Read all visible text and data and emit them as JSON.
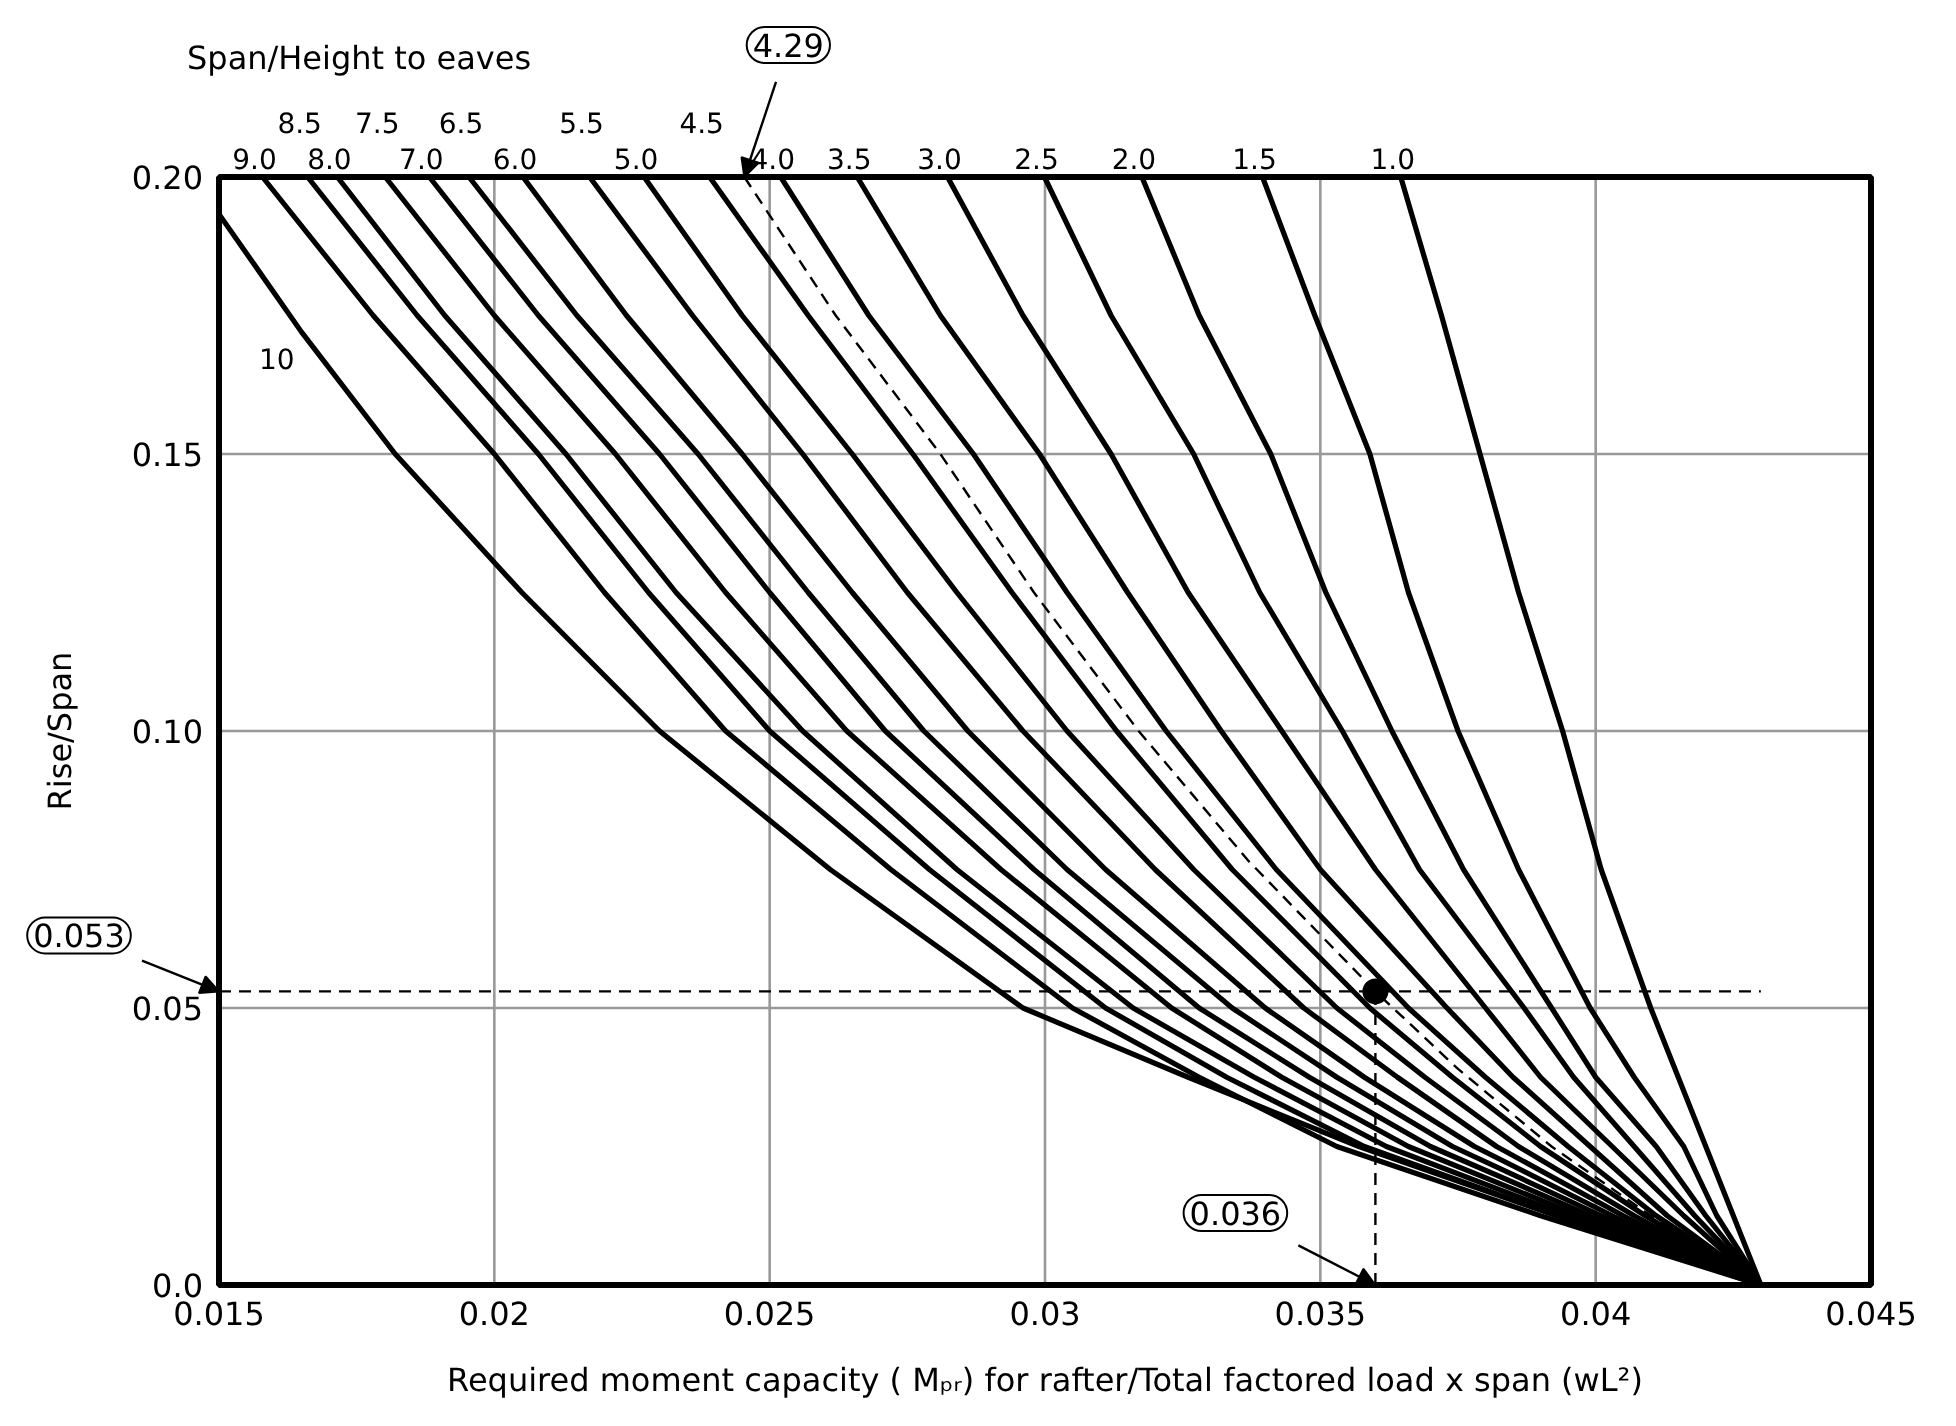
{
  "chart_data": {
    "type": "line",
    "xlabel": "Required moment capacity ( Mₚᵣ) for rafter/Total factored load x span (wL²)",
    "ylabel": "Rise/Span",
    "legend_title": "Span/Height to eaves",
    "xlim": [
      0.015,
      0.045
    ],
    "ylim": [
      0,
      0.2
    ],
    "xticks": [
      0.015,
      0.02,
      0.025,
      0.03,
      0.035,
      0.04,
      0.045
    ],
    "yticks": [
      {
        "value": 0,
        "label": "0.0"
      },
      0.05,
      {
        "value": 0.1,
        "label": "0.10"
      },
      0.15,
      {
        "value": 0.2,
        "label": "0.20"
      }
    ],
    "grid": true,
    "marker": "none",
    "line_style": "solid",
    "series": [
      {
        "name": "10",
        "color": "#000000",
        "x": [
          0.015,
          0.0165,
          0.0182,
          0.0205,
          0.023,
          0.0261,
          0.0296,
          0.0326,
          0.0357,
          0.0393,
          0.043
        ],
        "values": [
          0.1933,
          0.172,
          0.15,
          0.125,
          0.1,
          0.075,
          0.05,
          0.0375,
          0.025,
          0.0125,
          0
        ]
      },
      {
        "name": "9.0",
        "color": "#000000",
        "x": [
          0.01579,
          0.0178,
          0.02,
          0.022,
          0.0242,
          0.0272,
          0.0305,
          0.0328,
          0.0353,
          0.039,
          0.043
        ],
        "values": [
          0.2,
          0.175,
          0.15,
          0.125,
          0.1,
          0.075,
          0.05,
          0.0375,
          0.025,
          0.0125,
          0
        ]
      },
      {
        "name": "8.5",
        "color": "#000000",
        "x": [
          0.01661,
          0.0186,
          0.0208,
          0.0228,
          0.025,
          0.0279,
          0.0311,
          0.0333,
          0.0358,
          0.0393,
          0.043
        ],
        "values": [
          0.2,
          0.175,
          0.15,
          0.125,
          0.1,
          0.075,
          0.05,
          0.0375,
          0.025,
          0.0125,
          0
        ]
      },
      {
        "name": "8.0",
        "color": "#000000",
        "x": [
          0.01715,
          0.0191,
          0.0213,
          0.0233,
          0.0256,
          0.0284,
          0.0316,
          0.0338,
          0.0362,
          0.0395,
          0.043
        ],
        "values": [
          0.2,
          0.175,
          0.15,
          0.125,
          0.1,
          0.075,
          0.05,
          0.0375,
          0.025,
          0.0125,
          0
        ]
      },
      {
        "name": "7.5",
        "color": "#000000",
        "x": [
          0.01802,
          0.02,
          0.0222,
          0.0242,
          0.0264,
          0.0292,
          0.0323,
          0.0343,
          0.0366,
          0.0397,
          0.043
        ],
        "values": [
          0.2,
          0.175,
          0.15,
          0.125,
          0.1,
          0.075,
          0.05,
          0.0375,
          0.025,
          0.0125,
          0
        ]
      },
      {
        "name": "7.0",
        "color": "#000000",
        "x": [
          0.01882,
          0.0208,
          0.023,
          0.025,
          0.0271,
          0.0298,
          0.0328,
          0.0348,
          0.037,
          0.0399,
          0.043
        ],
        "values": [
          0.2,
          0.175,
          0.15,
          0.125,
          0.1,
          0.075,
          0.05,
          0.0375,
          0.025,
          0.0125,
          0
        ]
      },
      {
        "name": "6.5",
        "color": "#000000",
        "x": [
          0.01954,
          0.0215,
          0.0237,
          0.0257,
          0.0278,
          0.0304,
          0.0334,
          0.0353,
          0.0374,
          0.0401,
          0.043
        ],
        "values": [
          0.2,
          0.175,
          0.15,
          0.125,
          0.1,
          0.075,
          0.05,
          0.0375,
          0.025,
          0.0125,
          0
        ]
      },
      {
        "name": "6.0",
        "color": "#000000",
        "x": [
          0.02052,
          0.0224,
          0.0245,
          0.0265,
          0.0286,
          0.0311,
          0.034,
          0.0358,
          0.0378,
          0.0403,
          0.043
        ],
        "values": [
          0.2,
          0.175,
          0.15,
          0.125,
          0.1,
          0.075,
          0.05,
          0.0375,
          0.025,
          0.0125,
          0
        ]
      },
      {
        "name": "5.5",
        "color": "#000000",
        "x": [
          0.02173,
          0.0236,
          0.0256,
          0.0275,
          0.0296,
          0.032,
          0.0347,
          0.0364,
          0.0382,
          0.0405,
          0.043
        ],
        "values": [
          0.2,
          0.175,
          0.15,
          0.125,
          0.1,
          0.075,
          0.05,
          0.0375,
          0.025,
          0.0125,
          0
        ]
      },
      {
        "name": "5.0",
        "color": "#000000",
        "x": [
          0.02272,
          0.0245,
          0.0265,
          0.0284,
          0.0304,
          0.0327,
          0.0353,
          0.0369,
          0.0386,
          0.0407,
          0.043
        ],
        "values": [
          0.2,
          0.175,
          0.15,
          0.125,
          0.1,
          0.075,
          0.05,
          0.0375,
          0.025,
          0.0125,
          0
        ]
      },
      {
        "name": "4.5",
        "color": "#000000",
        "x": [
          0.02391,
          0.0257,
          0.0276,
          0.0294,
          0.0313,
          0.0334,
          0.0359,
          0.0374,
          0.039,
          0.0409,
          0.043
        ],
        "values": [
          0.2,
          0.175,
          0.15,
          0.125,
          0.1,
          0.075,
          0.05,
          0.0375,
          0.025,
          0.0125,
          0
        ]
      },
      {
        "name": "4.0",
        "color": "#000000",
        "x": [
          0.0252,
          0.0268,
          0.0287,
          0.0304,
          0.0322,
          0.0342,
          0.0366,
          0.038,
          0.0395,
          0.0411,
          0.043
        ],
        "values": [
          0.2,
          0.175,
          0.15,
          0.125,
          0.1,
          0.075,
          0.05,
          0.0375,
          0.025,
          0.0125,
          0
        ]
      },
      {
        "name": "3.5",
        "color": "#000000",
        "x": [
          0.02659,
          0.0281,
          0.0299,
          0.0315,
          0.0332,
          0.035,
          0.0373,
          0.0385,
          0.0399,
          0.0413,
          0.043
        ],
        "values": [
          0.2,
          0.175,
          0.15,
          0.125,
          0.1,
          0.075,
          0.05,
          0.0375,
          0.025,
          0.0125,
          0
        ]
      },
      {
        "name": "3.0",
        "color": "#000000",
        "x": [
          0.02823,
          0.0296,
          0.0312,
          0.0326,
          0.0343,
          0.036,
          0.038,
          0.039,
          0.0403,
          0.0416,
          0.043
        ],
        "values": [
          0.2,
          0.175,
          0.15,
          0.125,
          0.1,
          0.075,
          0.05,
          0.0375,
          0.025,
          0.0125,
          0
        ]
      },
      {
        "name": "2.5",
        "color": "#000000",
        "x": [
          0.02999,
          0.0312,
          0.0327,
          0.0339,
          0.0354,
          0.0368,
          0.0387,
          0.0396,
          0.0407,
          0.0418,
          0.043
        ],
        "values": [
          0.2,
          0.175,
          0.15,
          0.125,
          0.1,
          0.075,
          0.05,
          0.0375,
          0.025,
          0.0125,
          0
        ]
      },
      {
        "name": "2.0",
        "color": "#000000",
        "x": [
          0.03176,
          0.0328,
          0.0341,
          0.0351,
          0.0363,
          0.0376,
          0.0392,
          0.04,
          0.0411,
          0.042,
          0.043
        ],
        "values": [
          0.2,
          0.175,
          0.15,
          0.125,
          0.1,
          0.075,
          0.05,
          0.0375,
          0.025,
          0.0125,
          0
        ]
      },
      {
        "name": "1.5",
        "color": "#000000",
        "x": [
          0.03395,
          0.0349,
          0.0359,
          0.0366,
          0.0375,
          0.0386,
          0.0399,
          0.0407,
          0.0416,
          0.0422,
          0.043
        ],
        "values": [
          0.2,
          0.175,
          0.15,
          0.125,
          0.1,
          0.075,
          0.05,
          0.0375,
          0.025,
          0.0125,
          0
        ]
      },
      {
        "name": "1.0",
        "color": "#000000",
        "x": [
          0.03646,
          0.0372,
          0.0379,
          0.0386,
          0.0394,
          0.0401,
          0.041,
          0.0415,
          0.042,
          0.0425,
          0.043
        ],
        "values": [
          0.2,
          0.175,
          0.15,
          0.125,
          0.1,
          0.075,
          0.05,
          0.0375,
          0.025,
          0.0125,
          0
        ]
      },
      {
        "color": "#000000",
        "line_style": "dashed",
        "x": [
          0.02454,
          0.0262,
          0.0281,
          0.0298,
          0.0317,
          0.0337,
          0.036,
          0.0375,
          0.0392,
          0.041,
          0.043
        ],
        "values": [
          0.2,
          0.175,
          0.15,
          0.125,
          0.1,
          0.0765,
          0.053,
          0.039,
          0.025,
          0.0125,
          0
        ]
      },
      {
        "color": "#000000",
        "line_style": "dashed",
        "x": [
          0.015,
          0.043
        ],
        "values": [
          0.053,
          0.053
        ]
      },
      {
        "color": "#000000",
        "line_style": "dashed",
        "x": [
          0.036,
          0.036
        ],
        "values": [
          0,
          0.053
        ]
      },
      {
        "type": "scatter",
        "marker": "circle",
        "color": "#000000",
        "x": [
          0.036
        ],
        "values": [
          0.053
        ]
      }
    ],
    "annotations": [
      {
        "text": "4.29",
        "x": 0.02454,
        "y": 0.2
      },
      {
        "text": "0.053",
        "x": 0.015,
        "y": 0.053
      },
      {
        "text": "0.036",
        "x": 0.036,
        "y": 0
      }
    ]
  }
}
